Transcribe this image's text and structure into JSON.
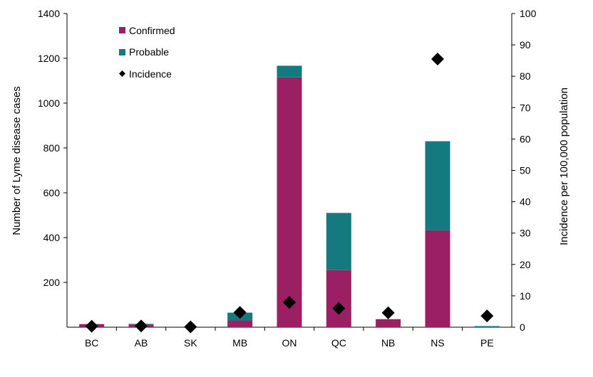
{
  "colors": {
    "confirmed": "#9b1f63",
    "probable": "#157a80",
    "incidence": "#000000",
    "axis": "#000000"
  },
  "chart_data": {
    "type": "bar",
    "stacked": true,
    "categories": [
      "BC",
      "AB",
      "SK",
      "MB",
      "ON",
      "QC",
      "NB",
      "NS",
      "PE"
    ],
    "series": [
      {
        "key": "confirmed",
        "name": "Confirmed",
        "type": "bar",
        "axis": "left",
        "values": [
          14,
          12,
          0,
          30,
          1115,
          255,
          36,
          432,
          0
        ]
      },
      {
        "key": "probable",
        "name": "Probable",
        "type": "bar",
        "axis": "left",
        "values": [
          0,
          3,
          0,
          35,
          52,
          255,
          0,
          398,
          5
        ]
      },
      {
        "key": "incidence",
        "name": "Incidence",
        "type": "scatter",
        "marker": "diamond",
        "axis": "right",
        "values": [
          0.3,
          0.4,
          0.1,
          4.7,
          7.9,
          6.0,
          4.6,
          85.5,
          3.6
        ]
      }
    ],
    "y_left": {
      "label": "Number of Lyme disease cases",
      "ylim": [
        0,
        1400
      ],
      "ticks": [
        200,
        400,
        600,
        800,
        1000,
        1200,
        1400
      ]
    },
    "y_right": {
      "label": "Incidence per 100,000 population",
      "ylim": [
        0,
        100
      ],
      "ticks": [
        0,
        10,
        20,
        30,
        40,
        50,
        60,
        70,
        80,
        90,
        100
      ]
    },
    "legend_placement": "top-left",
    "grid": false
  }
}
